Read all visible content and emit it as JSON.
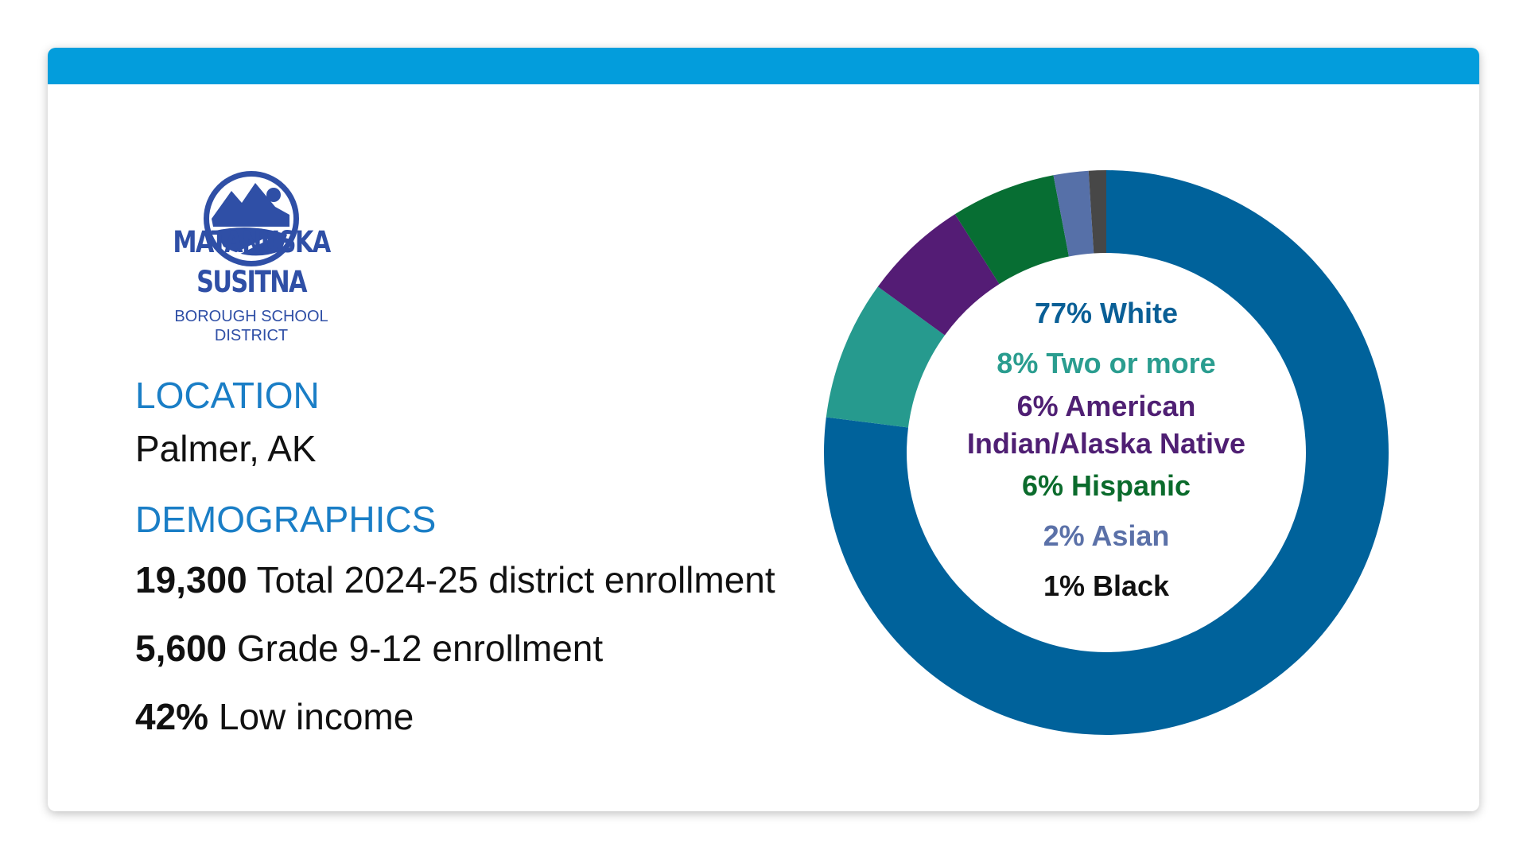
{
  "logo": {
    "line1": "MATANUSKA",
    "line2": "SUSITNA",
    "line3": "BOROUGH SCHOOL",
    "line4": "DISTRICT"
  },
  "location": {
    "heading": "LOCATION",
    "text": "Palmer, AK"
  },
  "demographics": {
    "heading": "DEMOGRAPHICS",
    "stats": [
      {
        "value": "19,300",
        "label": "Total 2024-25 district enrollment"
      },
      {
        "value": "5,600",
        "label": "Grade 9-12 enrollment"
      },
      {
        "value": "42%",
        "label": "Low income"
      }
    ]
  },
  "chart_data": {
    "type": "donut",
    "categories": [
      "White",
      "Two or more",
      "American Indian/Alaska Native",
      "Hispanic",
      "Asian",
      "Black"
    ],
    "values": [
      77,
      8,
      6,
      6,
      2,
      1
    ],
    "value_labels": [
      "77% White",
      "8% Two or more",
      "6% American Indian/Alaska Native",
      "6% Hispanic",
      "2% Asian",
      "1% Black"
    ],
    "colors": [
      "#00629b",
      "#269a8e",
      "#541c75",
      "#076e33",
      "#5670a8",
      "#474747"
    ],
    "label_colors": [
      "#0a5f96",
      "#2a9d8f",
      "#4f1f73",
      "#0b6b2c",
      "#5b71a8",
      "#111111"
    ]
  }
}
